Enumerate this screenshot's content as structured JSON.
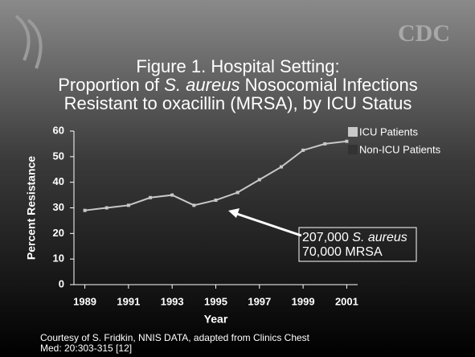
{
  "logo": "CDC",
  "chart_data": {
    "type": "line",
    "title": [
      "Figure 1. Hospital Setting:",
      [
        "Proportion of ",
        "S. aureus",
        " Nosocomial Infections"
      ],
      "Resistant to oxacillin (MRSA), by ICU Status"
    ],
    "x_label": "Year",
    "y_label": "Percent Resistance",
    "x": [
      1989,
      1990,
      1991,
      1992,
      1993,
      1994,
      1995,
      1996,
      1997,
      1998,
      1999,
      2000,
      2001
    ],
    "series": [
      {
        "name": "ICU Patients",
        "color": "#c8c8c8",
        "values": [
          29,
          30,
          31,
          34,
          35,
          31,
          33,
          36,
          41,
          46,
          52.5,
          55,
          56
        ]
      },
      {
        "name": "Non-ICU Patients",
        "color": "#333333",
        "values": [
          null,
          null,
          null,
          null,
          null,
          null,
          null,
          null,
          null,
          null,
          null,
          null,
          null
        ]
      }
    ],
    "xlim": [
      1988.5,
      2001.5
    ],
    "xticks": [
      1989,
      1991,
      1993,
      1995,
      1997,
      1999,
      2001
    ],
    "ylim": [
      0,
      60
    ],
    "yticks": [
      0,
      10,
      20,
      30,
      40,
      50,
      60
    ],
    "annotation": [
      [
        "207,000 ",
        "S. aureus"
      ],
      "70,000 MRSA"
    ],
    "source": [
      "Courtesy of S. Fridkin,  NNIS DATA, adapted from Clinics Chest",
      "Med: 20:303-315 [12]"
    ]
  }
}
